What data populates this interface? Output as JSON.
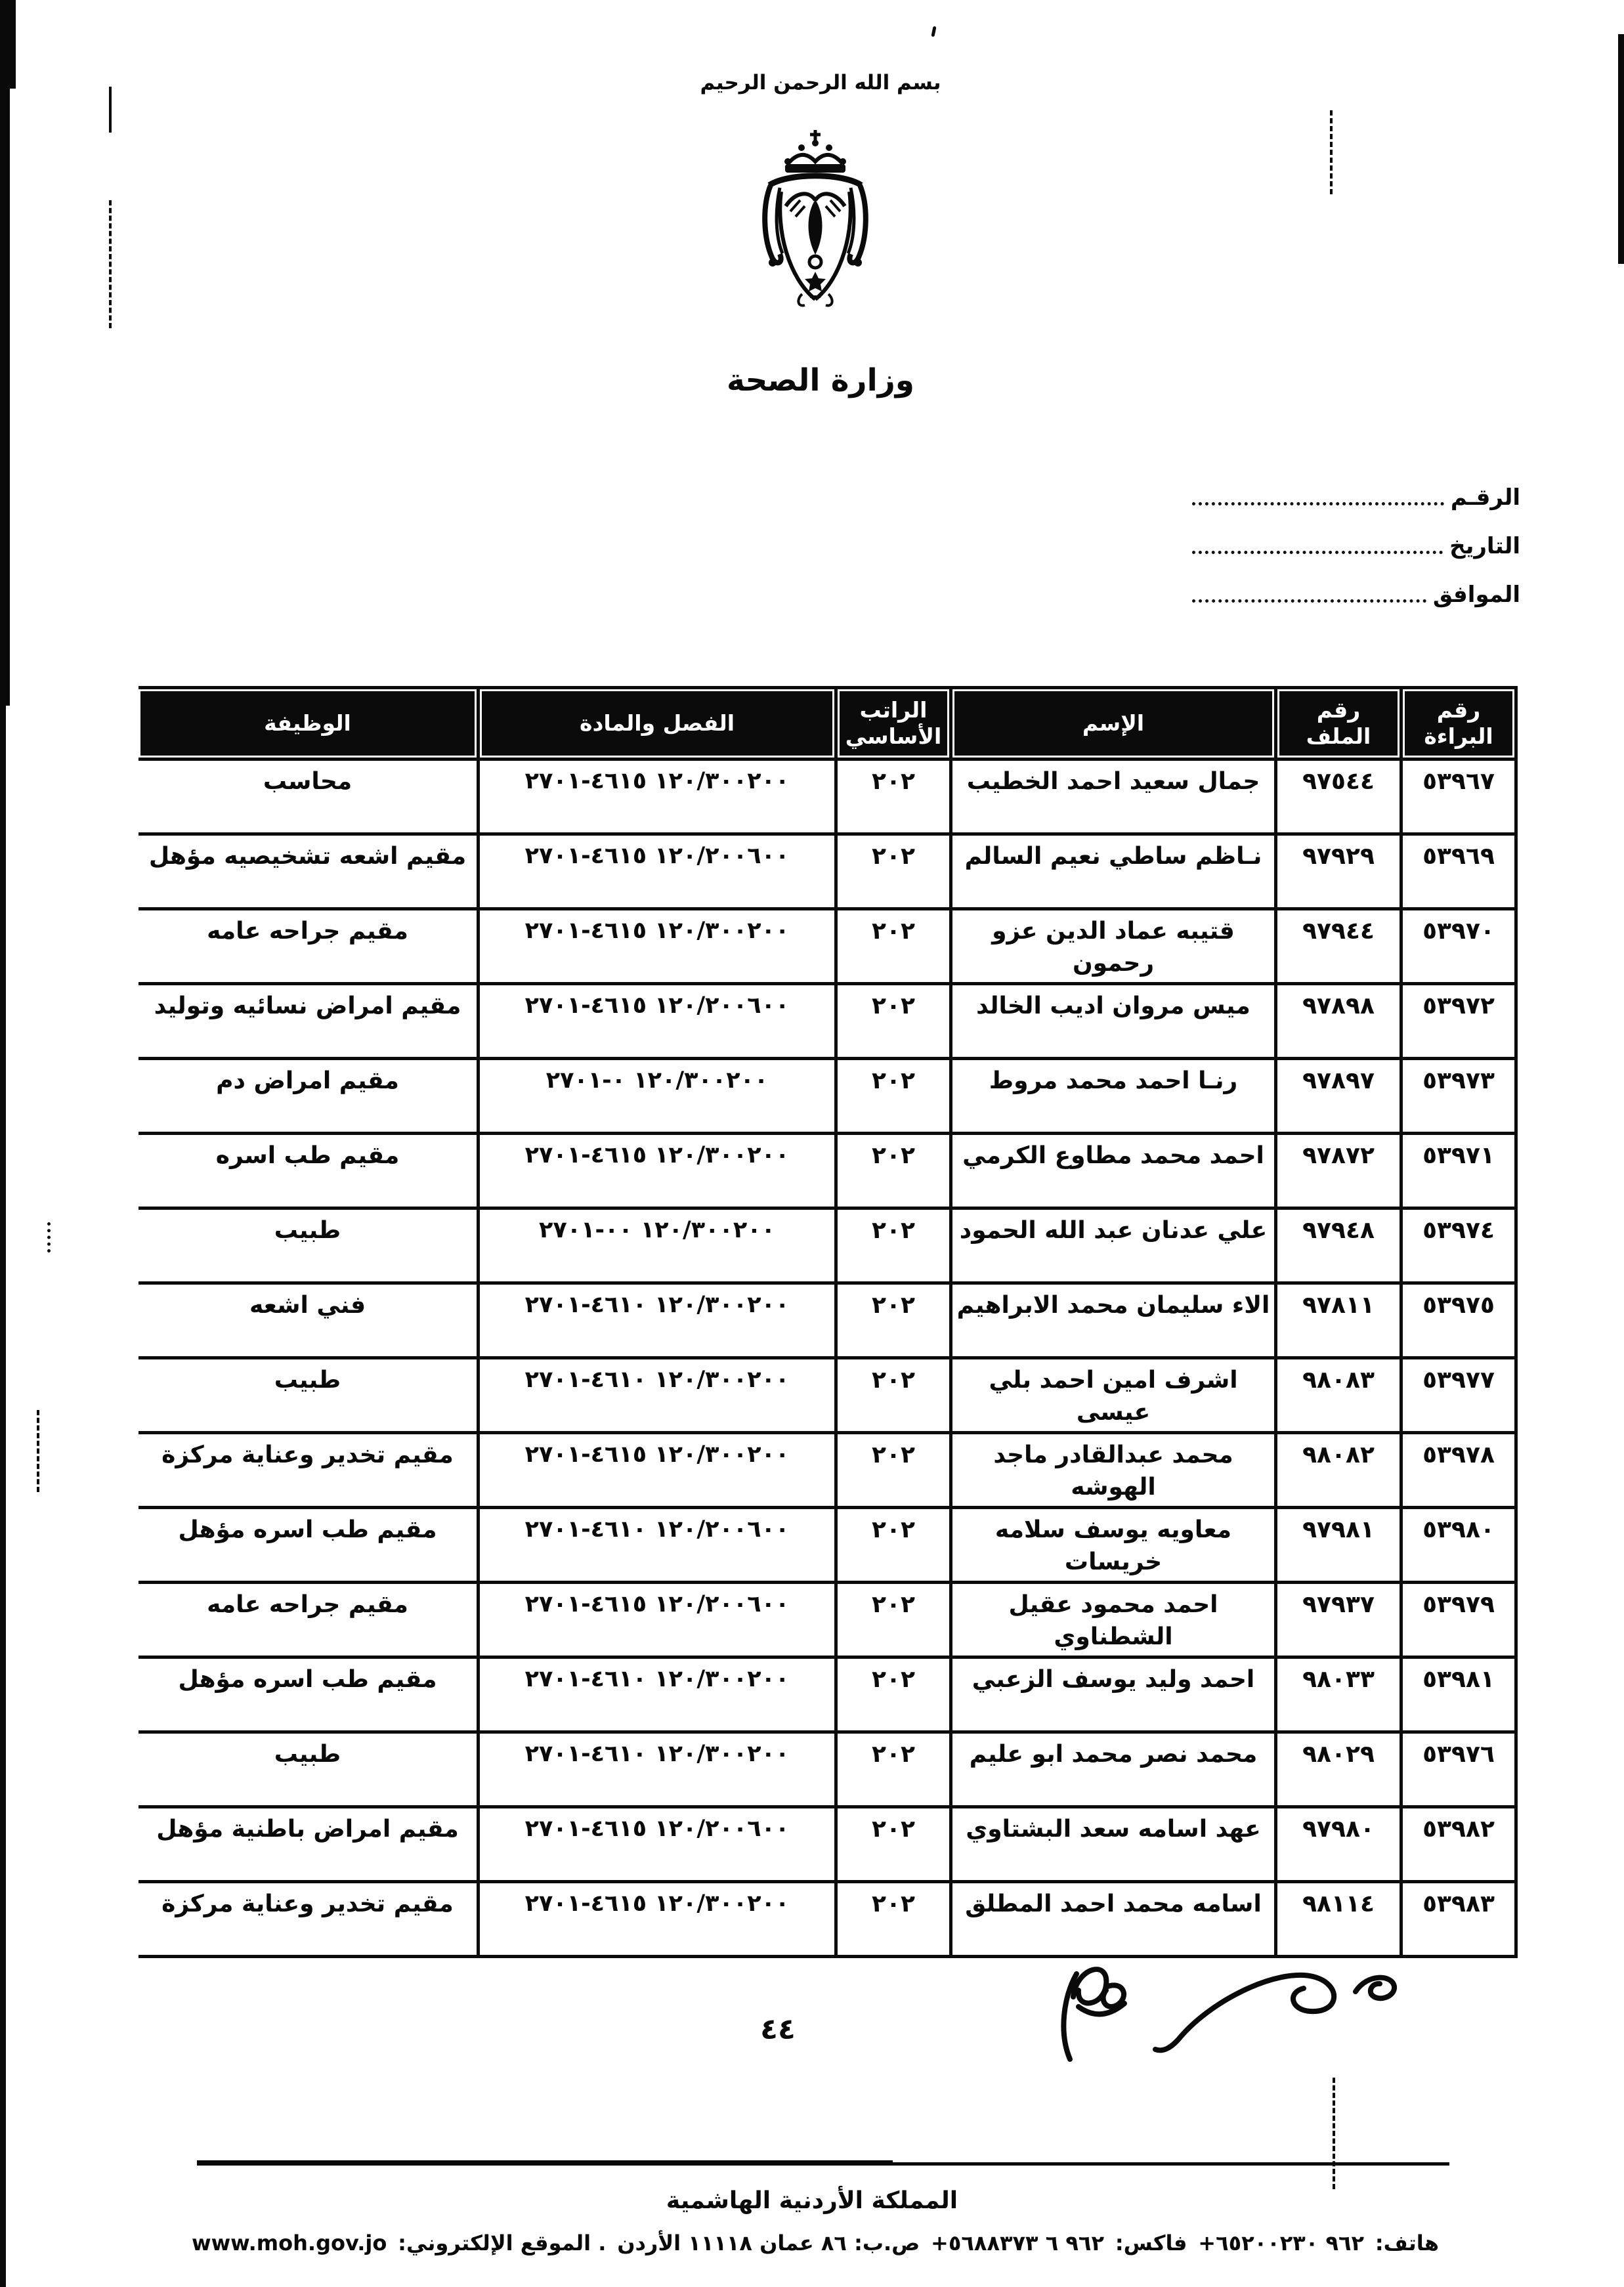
{
  "header": {
    "bismillah": "بسم الله الرحمن الرحيم",
    "ministry": "وزارة الصحة",
    "ref_fields": [
      {
        "label": "الرقـم"
      },
      {
        "label": "التاريخ"
      },
      {
        "label": "الموافق"
      }
    ]
  },
  "table": {
    "columns": {
      "certificate_no": "رقم البراءة",
      "file_no": "رقم الملف",
      "name": "الإسم",
      "basic_salary": "الراتب الأساسي",
      "chapter_article": "الفصل والمادة",
      "job": "الوظيفة"
    },
    "rows": [
      {
        "certificate_no": "٥٣٩٦٧",
        "file_no": "٩٧٥٤٤",
        "name": "جمال سعيد احمد الخطيب",
        "basic_salary": "٢٠٢",
        "chapter_article": "١٢٠/٣٠٠٢٠٠ ٤٦١٥-٢٧٠١",
        "job": "محاسب"
      },
      {
        "certificate_no": "٥٣٩٦٩",
        "file_no": "٩٧٩٢٩",
        "name": "نـاظم ساطي نعيم السالم",
        "basic_salary": "٢٠٢",
        "chapter_article": "١٢٠/٢٠٠٦٠٠ ٤٦١٥-٢٧٠١",
        "job": "مقيم اشعه تشخيصيه مؤهل"
      },
      {
        "certificate_no": "٥٣٩٧٠",
        "file_no": "٩٧٩٤٤",
        "name": "قتيبه عماد الدين عزو رحمون",
        "basic_salary": "٢٠٢",
        "chapter_article": "١٢٠/٣٠٠٢٠٠ ٤٦١٥-٢٧٠١",
        "job": "مقيم جراحه عامه"
      },
      {
        "certificate_no": "٥٣٩٧٢",
        "file_no": "٩٧٨٩٨",
        "name": "ميس مروان اديب الخالد",
        "basic_salary": "٢٠٢",
        "chapter_article": "١٢٠/٢٠٠٦٠٠ ٤٦١٥-٢٧٠١",
        "job": "مقيم امراض نسائيه وتوليد"
      },
      {
        "certificate_no": "٥٣٩٧٣",
        "file_no": "٩٧٨٩٧",
        "name": "رنـا احمد محمد مروط",
        "basic_salary": "٢٠٢",
        "chapter_article": "١٢٠/٣٠٠٢٠٠ ٠-٢٧٠١",
        "job": "مقيم امراض دم"
      },
      {
        "certificate_no": "٥٣٩٧١",
        "file_no": "٩٧٨٧٢",
        "name": "احمد محمد مطاوع الكرمي",
        "basic_salary": "٢٠٢",
        "chapter_article": "١٢٠/٣٠٠٢٠٠ ٤٦١٥-٢٧٠١",
        "job": "مقيم طب اسره"
      },
      {
        "certificate_no": "٥٣٩٧٤",
        "file_no": "٩٧٩٤٨",
        "name": "علي عدنان عبد الله الحمود",
        "basic_salary": "٢٠٢",
        "chapter_article": "١٢٠/٣٠٠٢٠٠ ٠٠-٢٧٠١",
        "job": "طبيب"
      },
      {
        "certificate_no": "٥٣٩٧٥",
        "file_no": "٩٧٨١١",
        "name": "الاء سليمان محمد الابراهيم",
        "basic_salary": "٢٠٢",
        "chapter_article": "١٢٠/٣٠٠٢٠٠ ٤٦١٠-٢٧٠١",
        "job": "فني اشعه"
      },
      {
        "certificate_no": "٥٣٩٧٧",
        "file_no": "٩٨٠٨٣",
        "name": "اشرف امين احمد بلي عيسى",
        "basic_salary": "٢٠٢",
        "chapter_article": "١٢٠/٣٠٠٢٠٠ ٤٦١٠-٢٧٠١",
        "job": "طبيب"
      },
      {
        "certificate_no": "٥٣٩٧٨",
        "file_no": "٩٨٠٨٢",
        "name": "محمد عبدالقادر ماجد الهوشه",
        "basic_salary": "٢٠٢",
        "chapter_article": "١٢٠/٣٠٠٢٠٠ ٤٦١٥-٢٧٠١",
        "job": "مقيم تخدير وعناية مركزة"
      },
      {
        "certificate_no": "٥٣٩٨٠",
        "file_no": "٩٧٩٨١",
        "name": "معاويه يوسف سلامه خريسات",
        "basic_salary": "٢٠٢",
        "chapter_article": "١٢٠/٢٠٠٦٠٠ ٤٦١٠-٢٧٠١",
        "job": "مقيم طب اسره مؤهل"
      },
      {
        "certificate_no": "٥٣٩٧٩",
        "file_no": "٩٧٩٣٧",
        "name": "احمد محمود عقيل الشطناوي",
        "basic_salary": "٢٠٢",
        "chapter_article": "١٢٠/٢٠٠٦٠٠ ٤٦١٥-٢٧٠١",
        "job": "مقيم جراحه عامه"
      },
      {
        "certificate_no": "٥٣٩٨١",
        "file_no": "٩٨٠٣٣",
        "name": "احمد وليد يوسف الزعبي",
        "basic_salary": "٢٠٢",
        "chapter_article": "١٢٠/٣٠٠٢٠٠ ٤٦١٠-٢٧٠١",
        "job": "مقيم طب اسره مؤهل"
      },
      {
        "certificate_no": "٥٣٩٧٦",
        "file_no": "٩٨٠٢٩",
        "name": "محمد نصر محمد ابو عليم",
        "basic_salary": "٢٠٢",
        "chapter_article": "١٢٠/٣٠٠٢٠٠ ٤٦١٠-٢٧٠١",
        "job": "طبيب"
      },
      {
        "certificate_no": "٥٣٩٨٢",
        "file_no": "٩٧٩٨٠",
        "name": "عهد اسامه سعد البشتاوي",
        "basic_salary": "٢٠٢",
        "chapter_article": "١٢٠/٢٠٠٦٠٠ ٤٦١٥-٢٧٠١",
        "job": "مقيم امراض باطنية مؤهل"
      },
      {
        "certificate_no": "٥٣٩٨٣",
        "file_no": "٩٨١١٤",
        "name": "اسامه محمد احمد المطلق",
        "basic_salary": "٢٠٢",
        "chapter_article": "١٢٠/٣٠٠٢٠٠ ٤٦١٥-٢٧٠١",
        "job": "مقيم تخدير وعناية مركزة"
      }
    ]
  },
  "page_number": "٤٤",
  "footer": {
    "kingdom": "المملكة الأردنية الهاشمية",
    "phone_label": "هاتف:",
    "phone": "+٩٦٢ ٦٥٢٠٠٢٣٠",
    "fax_label": "فاكس:",
    "fax": "+٩٦٢ ٦ ٥٦٨٨٣٧٣",
    "pobox": "ص.ب: ٨٦ عمان ١١١١٨ الأردن",
    "website_label": ". الموقع الإلكتروني:",
    "website": "www.moh.gov.jo"
  }
}
